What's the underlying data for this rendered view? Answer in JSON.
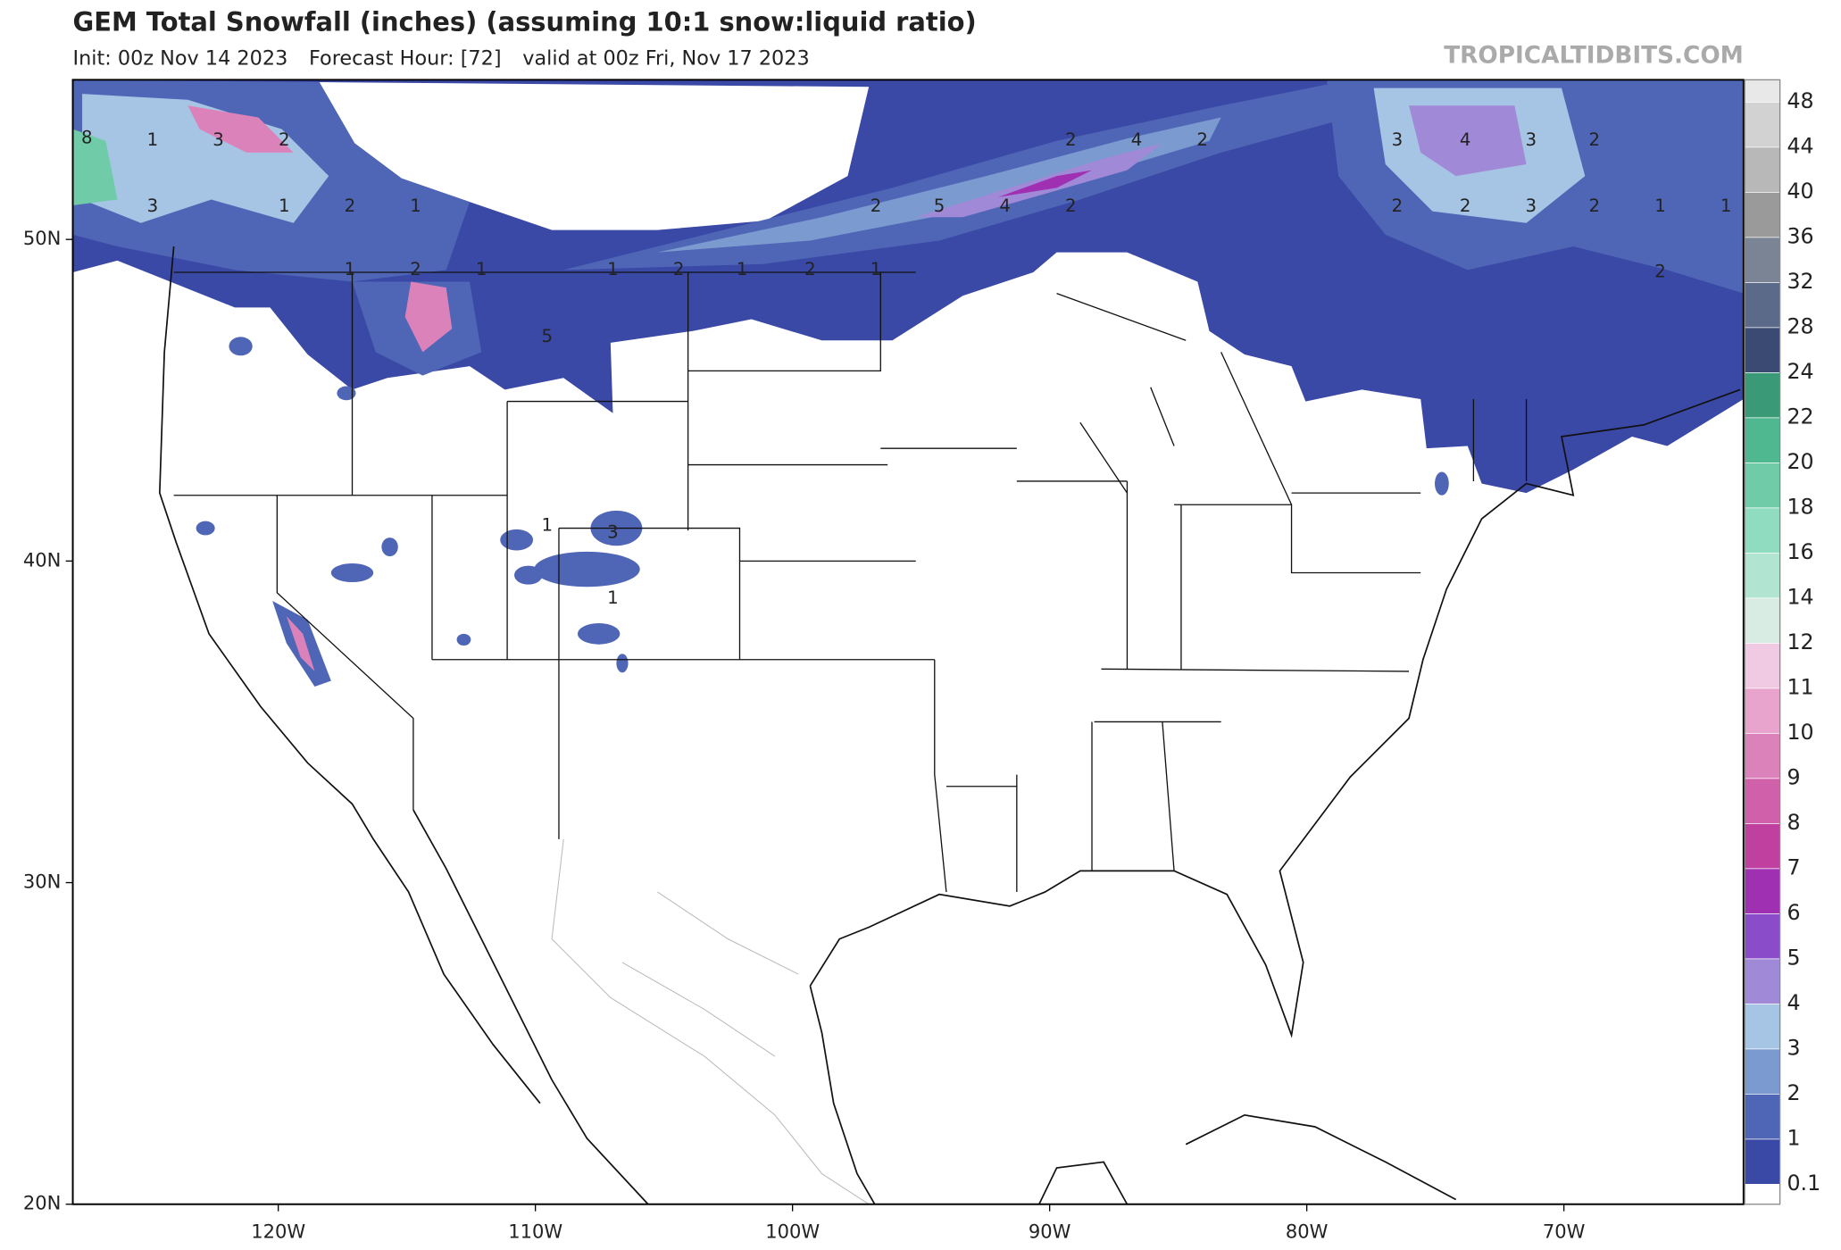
{
  "header": {
    "title": "GEM Total Snowfall (inches) (assuming 10:1 snow:liquid ratio)",
    "init": "Init: 00z Nov 14 2023",
    "forecast_hour": "Forecast Hour: [72]",
    "valid": "valid at 00z Fri, Nov 17 2023",
    "site": "TROPICALTIDBITS.COM"
  },
  "map": {
    "lonticks": [
      {
        "value": -120,
        "label": "120W"
      },
      {
        "value": -110,
        "label": "110W"
      },
      {
        "value": -100,
        "label": "100W"
      },
      {
        "value": -90,
        "label": "90W"
      },
      {
        "value": -80,
        "label": "80W"
      },
      {
        "value": -70,
        "label": "70W"
      }
    ],
    "latticks": [
      {
        "value": 20,
        "label": "20N"
      },
      {
        "value": 30,
        "label": "30N"
      },
      {
        "value": 40,
        "label": "40N"
      },
      {
        "value": 50,
        "label": "50N"
      }
    ],
    "colorbar": {
      "levels": [
        0.1,
        1,
        2,
        3,
        4,
        5,
        6,
        7,
        8,
        9,
        10,
        11,
        12,
        14,
        16,
        18,
        20,
        22,
        24,
        28,
        32,
        36,
        40,
        44,
        48
      ],
      "colors": [
        "#3a48a6",
        "#4f66b6",
        "#7b9ad0",
        "#a6c4e4",
        "#a08ad8",
        "#8a4cc8",
        "#a030b2",
        "#c040a0",
        "#d060aa",
        "#dc82ba",
        "#e8a4cc",
        "#f0cae2",
        "#d8ece4",
        "#b2e4d2",
        "#90dcc0",
        "#70cca8",
        "#50b890",
        "#3a9a78",
        "#3a4a72",
        "#5a6a88",
        "#7a8494",
        "#9a9a9a",
        "#b8b8b8",
        "#d2d2d2"
      ],
      "under_color": "#ffffff",
      "over_color": "#e8e8e8"
    },
    "contour_labels": [
      8,
      1,
      3,
      2,
      3,
      1,
      2,
      1,
      1,
      2,
      1,
      1,
      2,
      1,
      2,
      1,
      5,
      3,
      1,
      1,
      2,
      4,
      2,
      2,
      5,
      4,
      2,
      3,
      4,
      3,
      2,
      2,
      2,
      3,
      2,
      1,
      1,
      2
    ]
  }
}
